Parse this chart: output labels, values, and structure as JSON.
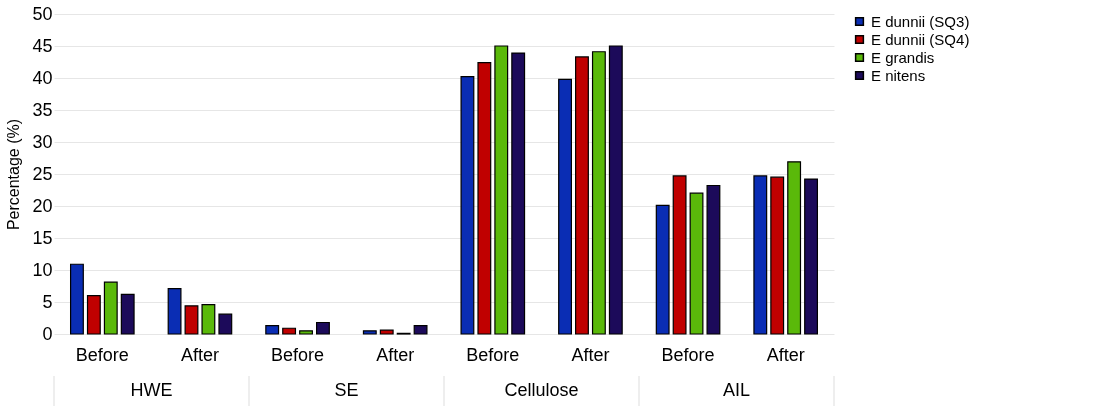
{
  "chart_data": {
    "type": "bar",
    "ylabel": "Percentage (%)",
    "categories": [
      "Before",
      "After",
      "Before",
      "After",
      "Before",
      "After",
      "Before",
      "After"
    ],
    "annotations": [
      "HWE",
      "SE",
      "Cellulose",
      "AIL"
    ],
    "series": [
      {
        "name": "E dunnii (SQ3)",
        "color": "#0a2db4",
        "values": [
          10.9,
          7.1,
          1.3,
          0.5,
          40.2,
          39.8,
          20.1,
          24.7
        ]
      },
      {
        "name": "E dunnii (SQ4)",
        "color": "#c00000",
        "values": [
          6.0,
          4.4,
          0.9,
          0.6,
          42.4,
          43.3,
          24.7,
          24.5
        ]
      },
      {
        "name": "E grandis",
        "color": "#5ab90a",
        "values": [
          8.1,
          4.6,
          0.5,
          0.1,
          45.0,
          44.1,
          22.0,
          26.9
        ]
      },
      {
        "name": "E nitens",
        "color": "#1c0a5a",
        "values": [
          6.2,
          3.1,
          1.8,
          1.3,
          43.9,
          45.0,
          23.2,
          24.2
        ]
      }
    ],
    "ylim": [
      0,
      50
    ],
    "yticks": [
      0,
      5,
      10,
      15,
      20,
      25,
      30,
      35,
      40,
      45,
      50
    ],
    "grid": "y",
    "legend": "right"
  }
}
